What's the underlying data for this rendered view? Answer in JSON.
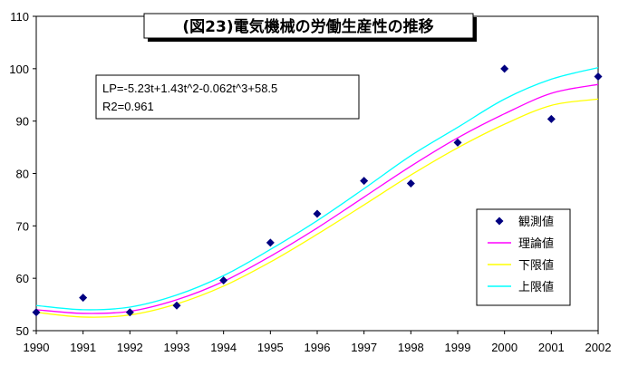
{
  "chart_data": {
    "type": "scatter",
    "title": "(図23)電気機械の労働生産性の推移",
    "annotation": [
      "LP=-5.23t+1.43t^2-0.062t^3+58.5",
      "R2=0.961"
    ],
    "x": [
      1990,
      1991,
      1992,
      1993,
      1994,
      1995,
      1996,
      1997,
      1998,
      1999,
      2000,
      2001,
      2002
    ],
    "xlim": [
      1990,
      2002
    ],
    "ylim": [
      50,
      110
    ],
    "yticks": [
      50,
      60,
      70,
      80,
      90,
      100,
      110
    ],
    "xticks": [
      "1990",
      "1991",
      "1992",
      "1993",
      "1994",
      "1995",
      "1996",
      "1997",
      "1998",
      "1999",
      "2000",
      "2001",
      "2002"
    ],
    "grid": false,
    "legend_position": "bottom-right",
    "series": [
      {
        "name": "観測値",
        "kind": "marker",
        "color": "#000080",
        "x": [
          1990,
          1991,
          1992,
          1993,
          1994,
          1995,
          1996,
          1997,
          1998,
          1999,
          2000,
          2001,
          2002
        ],
        "values": [
          53.5,
          56.3,
          53.5,
          54.8,
          59.6,
          66.8,
          72.3,
          78.6,
          78.1,
          85.9,
          100.0,
          90.4,
          98.5
        ]
      },
      {
        "name": "理論値",
        "kind": "line",
        "color": "#FF00FF",
        "x": [
          1990,
          1991,
          1992,
          1993,
          1994,
          1995,
          1996,
          1997,
          1998,
          1999,
          2000,
          2001,
          2002
        ],
        "values": [
          54.0,
          53.3,
          53.7,
          55.9,
          59.4,
          64.2,
          69.6,
          75.5,
          81.4,
          86.8,
          91.4,
          95.3,
          97.0
        ]
      },
      {
        "name": "下限値",
        "kind": "line",
        "color": "#FFFF00",
        "x": [
          1990,
          1991,
          1992,
          1993,
          1994,
          1995,
          1996,
          1997,
          1998,
          1999,
          2000,
          2001,
          2002
        ],
        "values": [
          53.5,
          52.6,
          53.0,
          55.1,
          58.5,
          63.1,
          68.4,
          74.0,
          79.7,
          84.9,
          89.4,
          93.0,
          94.2
        ]
      },
      {
        "name": "上限値",
        "kind": "line",
        "color": "#00FFFF",
        "x": [
          1990,
          1991,
          1992,
          1993,
          1994,
          1995,
          1996,
          1997,
          1998,
          1999,
          2000,
          2001,
          2002
        ],
        "values": [
          54.8,
          54.0,
          54.5,
          56.8,
          60.5,
          65.5,
          71.0,
          77.1,
          83.4,
          88.8,
          94.2,
          98.0,
          100.2
        ]
      }
    ]
  }
}
